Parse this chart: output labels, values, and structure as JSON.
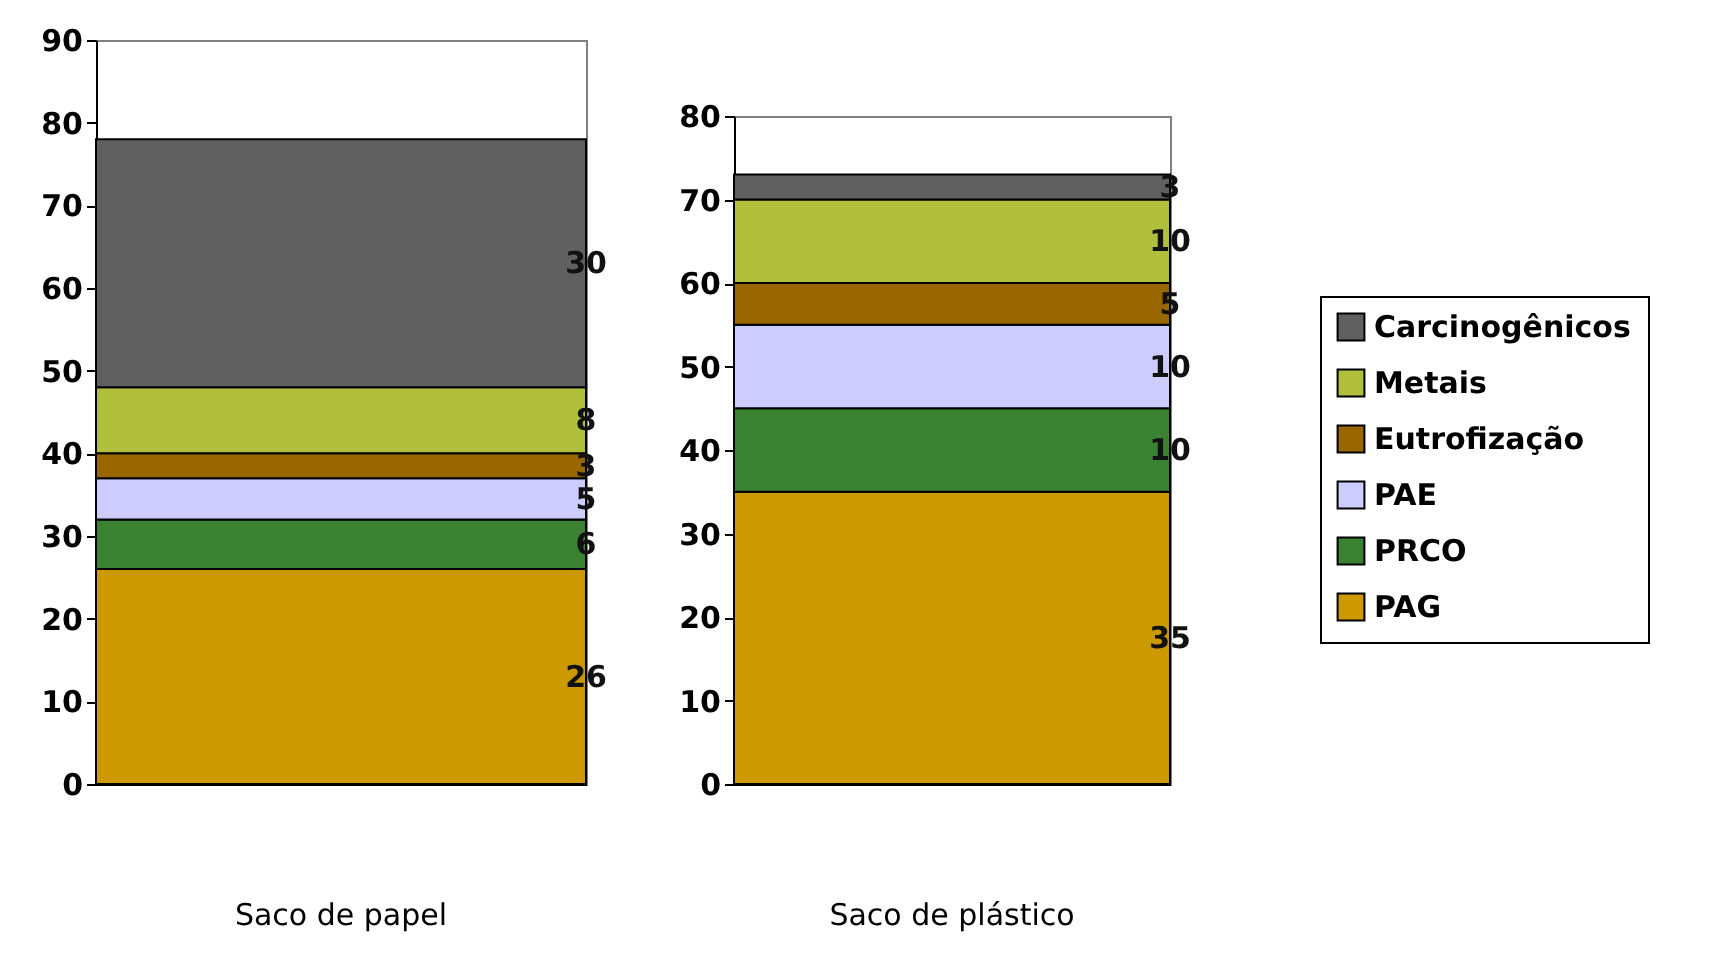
{
  "chart_data": [
    {
      "type": "bar",
      "stacked": true,
      "categories": [
        "Saco de papel"
      ],
      "ylim": [
        0,
        90
      ],
      "yticks": [
        0,
        10,
        20,
        30,
        40,
        50,
        60,
        70,
        80,
        90
      ],
      "data_labels": true,
      "series": [
        {
          "color": "#cc9900",
          "values": [
            26
          ]
        },
        {
          "color": "#3a8232",
          "values": [
            6
          ]
        },
        {
          "color": "#ccccff",
          "values": [
            5
          ]
        },
        {
          "color": "#996600",
          "values": [
            3
          ]
        },
        {
          "color": "#b0c03c",
          "values": [
            8
          ]
        },
        {
          "color": "#606060",
          "values": [
            30
          ]
        }
      ]
    },
    {
      "type": "bar",
      "stacked": true,
      "categories": [
        "Saco de plástico"
      ],
      "ylim": [
        0,
        80
      ],
      "yticks": [
        0,
        10,
        20,
        30,
        40,
        50,
        60,
        70,
        80
      ],
      "data_labels": true,
      "legend": "right",
      "series": [
        {
          "name": "PAG",
          "color": "#cc9900",
          "values": [
            35
          ]
        },
        {
          "name": "PRCO",
          "color": "#3a8232",
          "values": [
            10
          ]
        },
        {
          "name": "PAE",
          "color": "#ccccff",
          "values": [
            10
          ]
        },
        {
          "name": "Eutrofização",
          "color": "#996600",
          "values": [
            5
          ]
        },
        {
          "name": "Metais",
          "color": "#b0c03c",
          "values": [
            10
          ]
        },
        {
          "name": "Carcinogênicos",
          "color": "#606060",
          "values": [
            3
          ]
        }
      ]
    }
  ]
}
